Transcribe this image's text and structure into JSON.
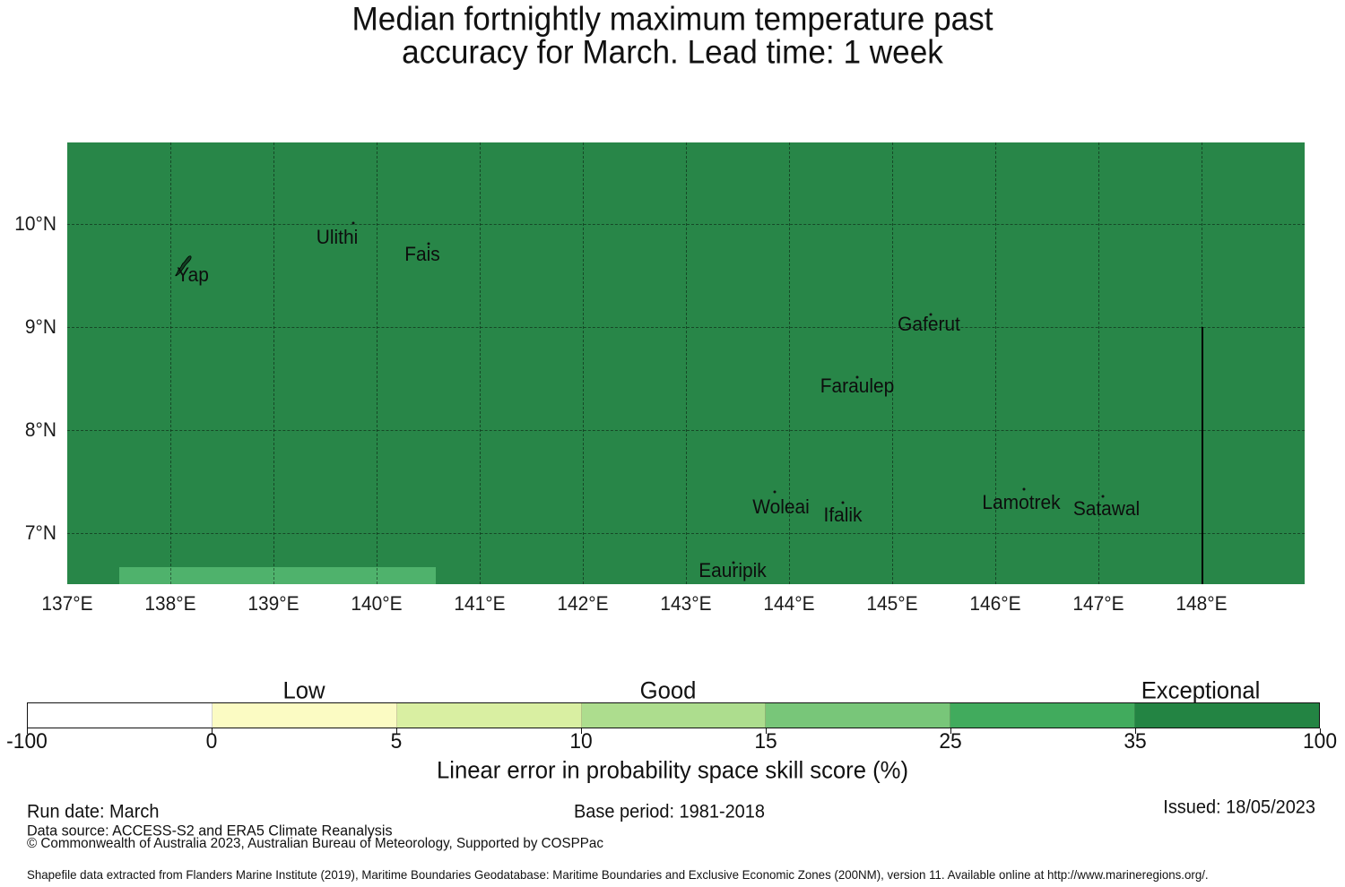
{
  "chart_data": {
    "type": "choropleth-map",
    "title": "Median fortnightly maximum temperature past accuracy for March. Lead time: 1 week",
    "title_lines": [
      "Median fortnightly maximum temperature past",
      "accuracy for March. Lead time: 1 week"
    ],
    "projection": "equirectangular",
    "axes": {
      "lon_range": [
        137.0,
        149.0
      ],
      "lat_range": [
        6.5,
        10.79
      ],
      "x_tick_labels": [
        "137°E",
        "138°E",
        "139°E",
        "140°E",
        "141°E",
        "142°E",
        "143°E",
        "144°E",
        "145°E",
        "146°E",
        "147°E",
        "148°E"
      ],
      "x_tick_lons": [
        137,
        138,
        139,
        140,
        141,
        142,
        143,
        144,
        145,
        146,
        147,
        148
      ],
      "y_tick_labels": [
        "10°N",
        "9°N",
        "8°N",
        "7°N"
      ],
      "y_tick_lats": [
        10,
        9,
        8,
        7
      ],
      "grid": "dashed"
    },
    "regions": [
      {
        "name": "main-eez-region",
        "skill_band": "35-100",
        "zone": "Exceptional",
        "color": "#288648"
      },
      {
        "name": "southwest-strip-region",
        "skill_band": "25-35",
        "color": "#4fb26c",
        "lon_range": [
          137.5,
          140.57
        ],
        "lat_range": [
          6.5,
          6.67
        ]
      }
    ],
    "boundary_line": {
      "lon": 148.0,
      "lat_from": 9.0,
      "lat_to": 6.5,
      "color": "#000000"
    },
    "islands": [
      {
        "name": "Yap",
        "lon": 138.22,
        "lat": 9.5,
        "marker_lon": 138.13,
        "marker_lat": 9.59,
        "marker_type": "island-shape"
      },
      {
        "name": "Ulithi",
        "lon": 139.62,
        "lat": 9.87,
        "marker_lon": 139.77,
        "marker_lat": 10.01,
        "marker_type": "dot"
      },
      {
        "name": "Fais",
        "lon": 140.44,
        "lat": 9.7,
        "marker_lon": 140.5,
        "marker_lat": 9.81,
        "marker_type": "dot"
      },
      {
        "name": "Gaferut",
        "lon": 145.36,
        "lat": 9.02,
        "marker_lon": 145.37,
        "marker_lat": 9.12,
        "marker_type": "dot"
      },
      {
        "name": "Faraulep",
        "lon": 144.66,
        "lat": 8.42,
        "marker_lon": 144.66,
        "marker_lat": 8.51,
        "marker_type": "dot"
      },
      {
        "name": "Woleai",
        "lon": 143.92,
        "lat": 7.25,
        "marker_lon": 143.86,
        "marker_lat": 7.4,
        "marker_type": "dot"
      },
      {
        "name": "Ifalik",
        "lon": 144.52,
        "lat": 7.17,
        "marker_lon": 144.52,
        "marker_lat": 7.29,
        "marker_type": "dot"
      },
      {
        "name": "Lamotrek",
        "lon": 146.25,
        "lat": 7.29,
        "marker_lon": 146.28,
        "marker_lat": 7.42,
        "marker_type": "dot"
      },
      {
        "name": "Satawal",
        "lon": 147.08,
        "lat": 7.23,
        "marker_lon": 147.04,
        "marker_lat": 7.35,
        "marker_type": "dot"
      },
      {
        "name": "Eauripik",
        "lon": 143.45,
        "lat": 6.63,
        "marker_lon": 143.46,
        "marker_lat": 6.71,
        "marker_type": "dot"
      }
    ],
    "colorbar": {
      "label": "Linear error in probability space skill score (%)",
      "tick_values": [
        "-100",
        "0",
        "5",
        "10",
        "15",
        "25",
        "35",
        "100"
      ],
      "segment_colors": [
        "#ffffff",
        "#fbfbc3",
        "#d9efa2",
        "#addd8e",
        "#78c679",
        "#41ab5d",
        "#238443"
      ],
      "zone_labels": [
        {
          "label": "Low",
          "segment_index": 1
        },
        {
          "label": "Good",
          "segment_index": 3
        },
        {
          "label": "Exceptional",
          "segment_index": 6
        }
      ]
    }
  },
  "footer": {
    "run_date": "Run date: March",
    "base_period": "Base period: 1981-2018",
    "issued": "Issued: 18/05/2023",
    "data_source": "Data source: ACCESS-S2 and ERA5 Climate Reanalysis",
    "copyright": "© Commonwealth of Australia 2023, Australian Bureau of Meteorology, Supported by COSPPac",
    "shapefile_note": "Shapefile data extracted from Flanders Marine Institute (2019), Maritime Boundaries Geodatabase: Maritime Boundaries and Exclusive Economic Zones (200NM), version 11. Available online at http://www.marineregions.org/."
  }
}
